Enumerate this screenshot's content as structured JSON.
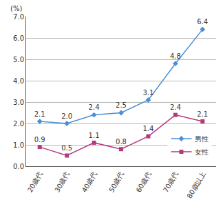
{
  "chart_data": {
    "type": "line",
    "y_label": "(%)",
    "categories": [
      "20歳代",
      "30歳代",
      "40歳代",
      "50歳代",
      "60歳代",
      "70歳代",
      "80歳以上"
    ],
    "series": [
      {
        "name": "男性",
        "color": "#4b8fd6",
        "marker": "diamond",
        "values": [
          2.1,
          2.0,
          2.4,
          2.5,
          3.1,
          4.8,
          6.4
        ],
        "value_labels": [
          "2.1",
          "2.0",
          "2.4",
          "2.5",
          "3.1",
          "4.8",
          "6.4"
        ]
      },
      {
        "name": "女性",
        "color": "#b5397d",
        "marker": "square",
        "values": [
          0.9,
          0.5,
          1.1,
          0.8,
          1.4,
          2.4,
          2.1
        ],
        "value_labels": [
          "0.9",
          "0.5",
          "1.1",
          "0.8",
          "1.4",
          "2.4",
          "2.1"
        ]
      }
    ],
    "ylim": [
      0,
      7
    ],
    "yticks": [
      {
        "value": 0,
        "label": "0.0"
      },
      {
        "value": 1,
        "label": "1.0"
      },
      {
        "value": 2,
        "label": "2.0"
      },
      {
        "value": 3,
        "label": "3.0"
      },
      {
        "value": 4,
        "label": "4.0"
      },
      {
        "value": 5,
        "label": "5.0"
      },
      {
        "value": 6,
        "label": "6.0"
      },
      {
        "value": 7,
        "label": "7.0"
      }
    ],
    "grid": true,
    "legend": "lower right",
    "data_labels": true
  }
}
